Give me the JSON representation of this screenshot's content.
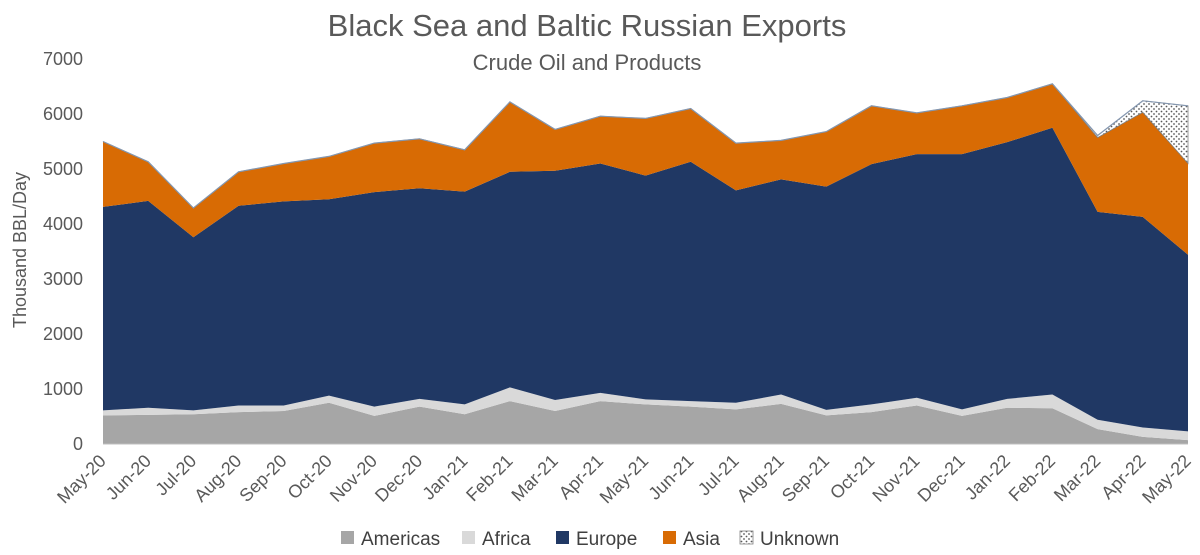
{
  "chart_data": {
    "type": "area",
    "stacked": true,
    "title": "Black Sea and Baltic Russian Exports",
    "subtitle": "Crude Oil and Products",
    "ylabel": "Thousand BBL/Day",
    "xlabel": "",
    "ylim": [
      0,
      7000
    ],
    "yticks": [
      0,
      1000,
      2000,
      3000,
      4000,
      5000,
      6000,
      7000
    ],
    "grid": false,
    "legend_position": "bottom",
    "categories": [
      "May-20",
      "Jun-20",
      "Jul-20",
      "Aug-20",
      "Sep-20",
      "Oct-20",
      "Nov-20",
      "Dec-20",
      "Jan-21",
      "Feb-21",
      "Mar-21",
      "Apr-21",
      "May-21",
      "Jun-21",
      "Jul-21",
      "Aug-21",
      "Sep-21",
      "Oct-21",
      "Nov-21",
      "Dec-21",
      "Jan-22",
      "Feb-22",
      "Mar-22",
      "Apr-22",
      "May-22"
    ],
    "series": [
      {
        "name": "Americas",
        "color": "#a6a6a6",
        "pattern": "solid",
        "values": [
          520,
          530,
          540,
          580,
          600,
          750,
          510,
          680,
          540,
          780,
          600,
          780,
          720,
          680,
          630,
          730,
          520,
          580,
          700,
          510,
          660,
          650,
          270,
          130,
          70
        ]
      },
      {
        "name": "Africa",
        "color": "#d9d9d9",
        "pattern": "solid",
        "values": [
          90,
          130,
          70,
          120,
          100,
          130,
          170,
          140,
          180,
          250,
          200,
          150,
          90,
          100,
          120,
          170,
          100,
          140,
          140,
          120,
          160,
          250,
          170,
          170,
          160
        ]
      },
      {
        "name": "Europe",
        "color": "#203864",
        "pattern": "solid",
        "values": [
          3700,
          3760,
          3150,
          3630,
          3710,
          3570,
          3900,
          3830,
          3870,
          3920,
          4170,
          4170,
          4070,
          4350,
          3860,
          3910,
          4060,
          4370,
          4430,
          4640,
          4670,
          4850,
          3780,
          3830,
          3210
        ]
      },
      {
        "name": "Asia",
        "color": "#d86b04",
        "pattern": "solid",
        "values": [
          1190,
          710,
          530,
          620,
          690,
          780,
          890,
          900,
          760,
          1270,
          750,
          860,
          1040,
          970,
          860,
          710,
          1000,
          1060,
          750,
          880,
          810,
          800,
          1350,
          1900,
          1660
        ]
      },
      {
        "name": "Unknown",
        "color": "#ffffff",
        "pattern": "dotted",
        "values": [
          0,
          0,
          0,
          0,
          0,
          0,
          0,
          0,
          0,
          0,
          0,
          0,
          0,
          0,
          0,
          0,
          0,
          0,
          0,
          0,
          0,
          0,
          40,
          210,
          1050
        ]
      }
    ]
  }
}
